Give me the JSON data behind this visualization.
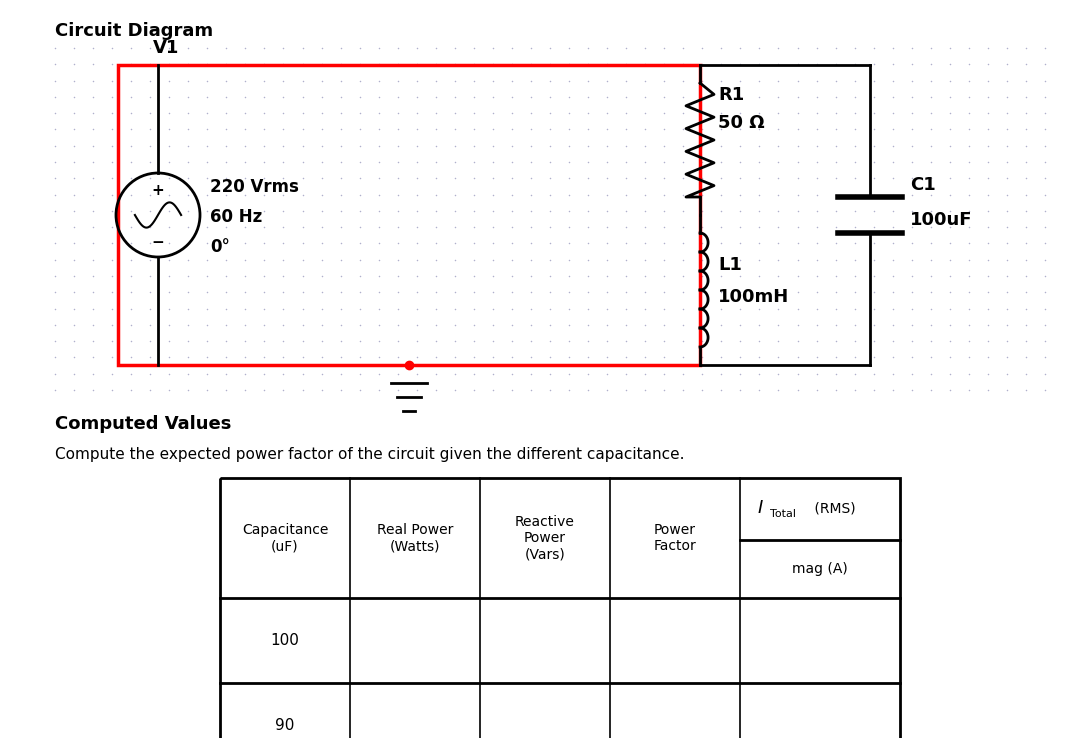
{
  "title": "Circuit Diagram",
  "bg_color": "#ffffff",
  "dot_color": "#b0b0cc",
  "computed_values_title": "Computed Values",
  "computed_text": "Compute the expected power factor of the circuit given the different capacitance.",
  "v1_label": "V1",
  "v_line1": "220 Vrms",
  "v_line2": "60 Hz",
  "v_line3": "0°",
  "r1_label1": "R1",
  "r1_label2": "50 Ω",
  "l1_label1": "L1",
  "l1_label2": "100mH",
  "c1_label1": "C1",
  "c1_label2": "100uF",
  "col_headers": [
    "Capacitance\n(uF)",
    "Real Power\n(Watts)",
    "Reactive\nPower\n(Vars)",
    "Power\nFactor"
  ],
  "last_col_top": "I",
  "last_col_sub": "Total",
  "last_col_rms": " (RMS)",
  "last_col_bot": "mag (A)",
  "row_data": [
    [
      "100"
    ],
    [
      "90"
    ]
  ]
}
